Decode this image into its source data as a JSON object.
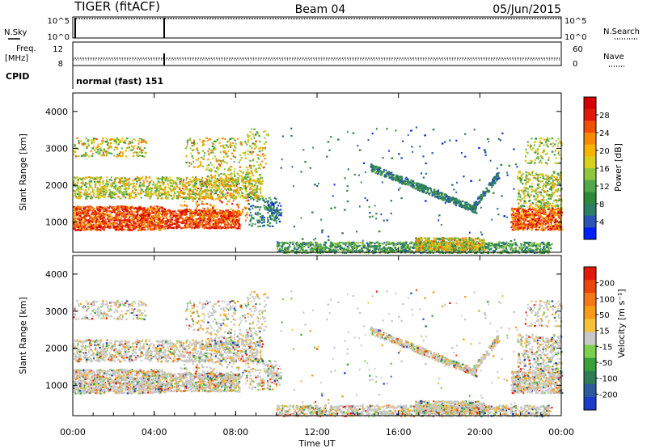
{
  "header": {
    "radar": "TIGER (fitACF)",
    "beam": "Beam 04",
    "date": "05/Jun/2015"
  },
  "nsky_panel": {
    "left_label": "N.Sky",
    "left_ticks": [
      "10^5",
      "10^0"
    ],
    "right_ticks": [
      "10^5",
      "10^0"
    ],
    "right_label": "N.Search"
  },
  "freq_panel": {
    "left_label_1": "Freq.",
    "left_label_2": "[MHz]",
    "left_ticks": [
      "12",
      "8"
    ],
    "right_ticks": [
      "60",
      "0"
    ],
    "right_label": "Nave"
  },
  "cpid": {
    "label": "CPID",
    "value": "normal (fast) 151"
  },
  "x_axis": {
    "ticks": [
      "00:00",
      "04:00",
      "08:00",
      "12:00",
      "16:00",
      "20:00",
      "00:00"
    ],
    "label": "Time UT"
  },
  "chart_data": [
    {
      "type": "heatmap",
      "name": "power",
      "ylabel": "Slant Range [km]",
      "yticks": [
        1000,
        2000,
        3000,
        4000
      ],
      "ylim": [
        180,
        4500
      ],
      "xlim_hours": [
        0,
        24
      ],
      "colorbar": {
        "label": "Power [dB]",
        "ticks": [
          "28",
          "24",
          "20",
          "16",
          "12",
          "8",
          "4"
        ],
        "colors": [
          "#0020ff",
          "#2a55b0",
          "#2e7d66",
          "#2e8a3a",
          "#4fa84a",
          "#8fc43c",
          "#d8d020",
          "#f5b30a",
          "#f58a0a",
          "#f04f0a",
          "#e01a0a",
          "#d40000"
        ]
      },
      "features": [
        {
          "label": "main band",
          "t": [
            0,
            8.5
          ],
          "range_km": [
            800,
            1400
          ],
          "level": "high"
        },
        {
          "label": "upper band",
          "t": [
            0,
            9.3
          ],
          "range_km": [
            1700,
            2200
          ],
          "level": "medium"
        },
        {
          "label": "upper scatter",
          "t": [
            0,
            9.5
          ],
          "range_km": [
            2600,
            3400
          ],
          "level": "medium"
        },
        {
          "label": "afternoon arc",
          "t": [
            14.5,
            20
          ],
          "range_km": [
            1300,
            2600
          ],
          "level": "low"
        },
        {
          "label": "near range",
          "t": [
            10,
            23
          ],
          "range_km": [
            200,
            500
          ],
          "level": "medium"
        },
        {
          "label": "late band",
          "t": [
            21.5,
            24
          ],
          "range_km": [
            800,
            3200
          ],
          "level": "high"
        }
      ]
    },
    {
      "type": "heatmap",
      "name": "velocity",
      "ylabel": "Slant Range [km]",
      "yticks": [
        1000,
        2000,
        3000,
        4000
      ],
      "ylim": [
        180,
        4500
      ],
      "xlim_hours": [
        0,
        24
      ],
      "colorbar": {
        "label": "Velocity [m s⁻¹]",
        "ticks": [
          "200",
          "100",
          "50",
          "15",
          "-15",
          "-50",
          "-100",
          "-200"
        ],
        "colors": [
          "#1c3cc8",
          "#2d5c9c",
          "#2e7d56",
          "#3aa03a",
          "#7dd04e",
          "#c8c8c8",
          "#f5c23a",
          "#f59d1a",
          "#f0781a",
          "#e8460a",
          "#e01a0a"
        ]
      }
    }
  ]
}
